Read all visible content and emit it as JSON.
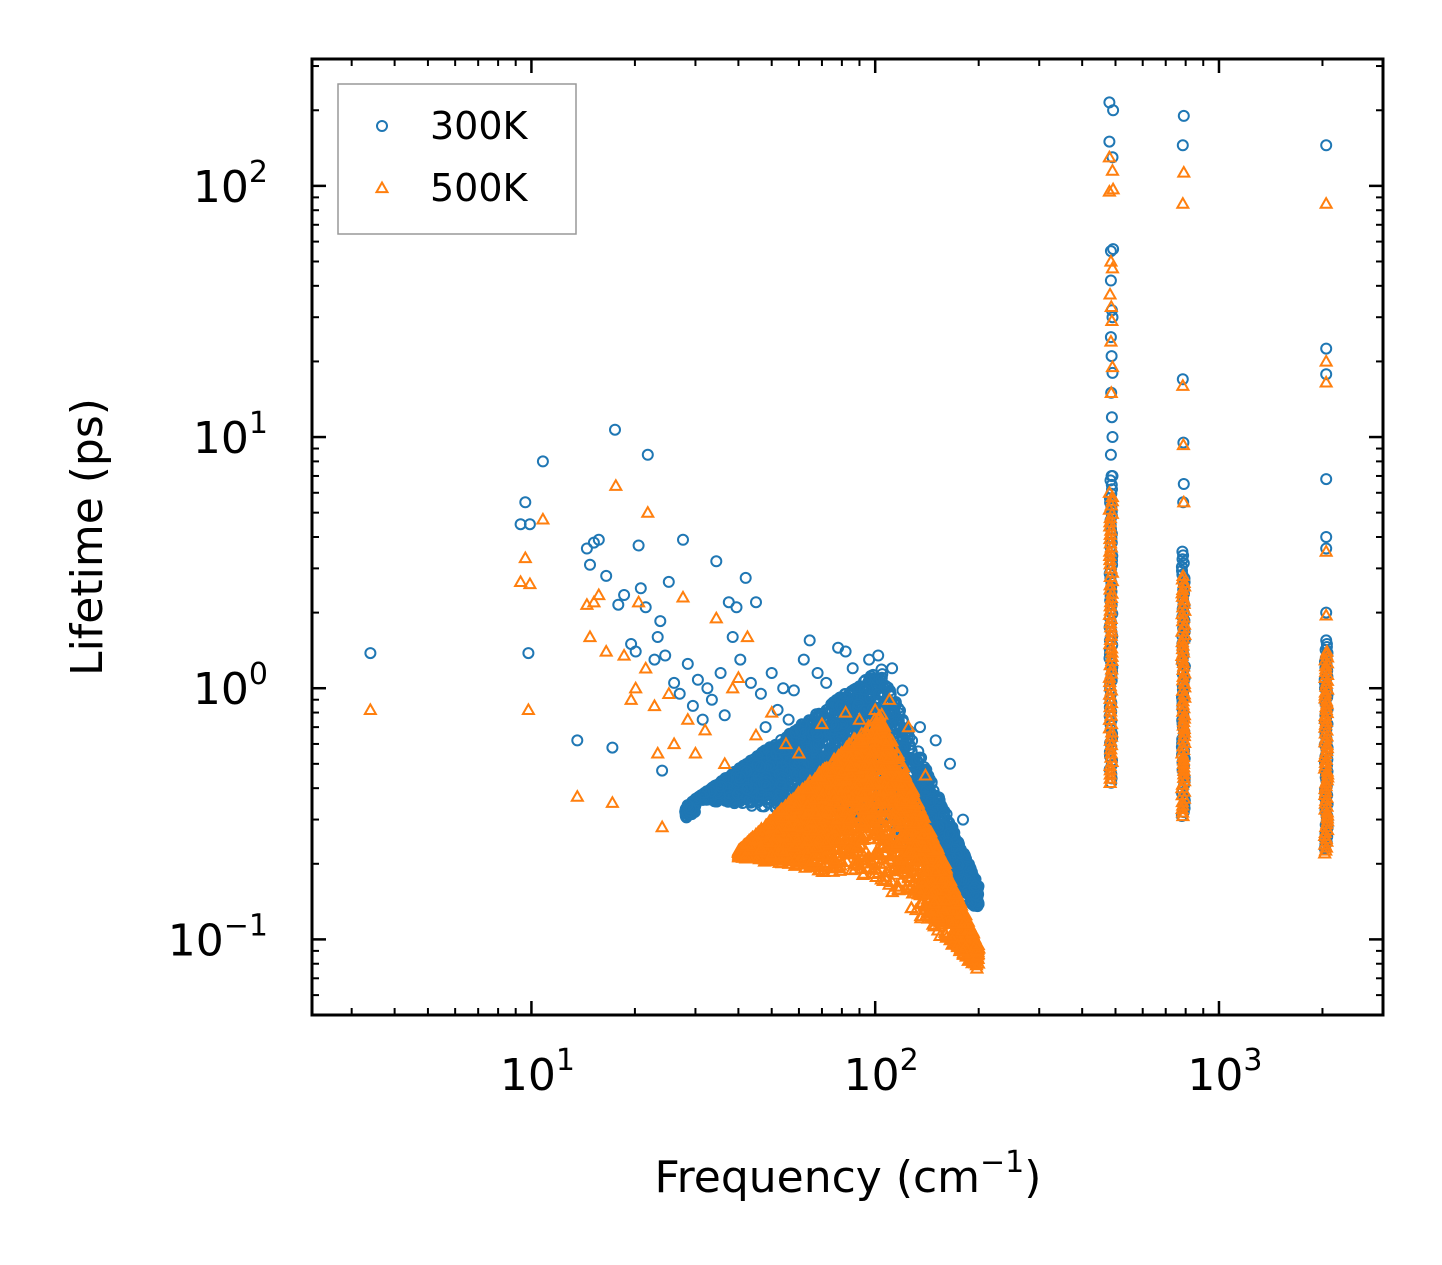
{
  "chart_data": {
    "type": "scatter",
    "xscale": "log",
    "yscale": "log",
    "xlabel_main": "Frequency (cm",
    "xlabel_sup": "−1",
    "xlabel_close": ")",
    "ylabel": "Lifetime (ps)",
    "xlim": [
      2.3,
      3000
    ],
    "ylim": [
      0.05,
      320
    ],
    "grid": false,
    "legend_position": "top-left",
    "x_ticks": [
      {
        "value": 10,
        "base": "10",
        "exp": "1"
      },
      {
        "value": 100,
        "base": "10",
        "exp": "2"
      },
      {
        "value": 1000,
        "base": "10",
        "exp": "3"
      }
    ],
    "y_ticks": [
      {
        "value": 0.1,
        "base": "10",
        "exp": "−1"
      },
      {
        "value": 1,
        "base": "10",
        "exp": "0"
      },
      {
        "value": 10,
        "base": "10",
        "exp": "1"
      },
      {
        "value": 100,
        "base": "10",
        "exp": "2"
      }
    ],
    "series": [
      {
        "name": "300K",
        "marker": "circle",
        "color": "#1f77b4",
        "points": [
          [
            3.4,
            1.38
          ],
          [
            9.3,
            4.5
          ],
          [
            9.6,
            5.5
          ],
          [
            9.9,
            4.5
          ],
          [
            9.8,
            1.38
          ],
          [
            10.8,
            8.0
          ],
          [
            13.6,
            0.62
          ],
          [
            14.5,
            3.6
          ],
          [
            14.8,
            3.1
          ],
          [
            15.2,
            3.8
          ],
          [
            15.7,
            3.9
          ],
          [
            16.5,
            2.8
          ],
          [
            17.2,
            0.58
          ],
          [
            17.9,
            2.15
          ],
          [
            17.5,
            10.7
          ],
          [
            18.6,
            2.35
          ],
          [
            19.5,
            1.5
          ],
          [
            20.1,
            1.4
          ],
          [
            20.5,
            3.7
          ],
          [
            20.8,
            2.5
          ],
          [
            21.5,
            2.1
          ],
          [
            21.8,
            8.5
          ],
          [
            22.8,
            1.3
          ],
          [
            23.3,
            1.6
          ],
          [
            23.7,
            1.85
          ],
          [
            24.5,
            1.35
          ],
          [
            25.1,
            2.65
          ],
          [
            24.0,
            0.47
          ],
          [
            26.0,
            1.05
          ],
          [
            27.0,
            0.95
          ],
          [
            27.6,
            3.9
          ],
          [
            28.5,
            1.25
          ],
          [
            29.5,
            0.85
          ],
          [
            30.5,
            1.08
          ],
          [
            31.5,
            0.75
          ],
          [
            32.5,
            1.0
          ],
          [
            33.5,
            0.9
          ],
          [
            34.5,
            3.2
          ],
          [
            35.5,
            1.15
          ],
          [
            36.5,
            0.78
          ],
          [
            37.5,
            2.2
          ],
          [
            38.5,
            1.6
          ],
          [
            39.5,
            2.1
          ],
          [
            40.5,
            1.3
          ],
          [
            42.0,
            2.75
          ],
          [
            43.5,
            1.05
          ],
          [
            45.0,
            2.2
          ],
          [
            46.5,
            0.95
          ],
          [
            48.0,
            0.7
          ],
          [
            50.0,
            1.15
          ],
          [
            52.0,
            0.82
          ],
          [
            54.0,
            1.0
          ],
          [
            56.0,
            0.75
          ],
          [
            58.0,
            0.98
          ],
          [
            62.0,
            1.3
          ],
          [
            64.5,
            1.55
          ],
          [
            68.0,
            1.15
          ],
          [
            72.0,
            1.05
          ],
          [
            78.0,
            1.45
          ],
          [
            82.0,
            1.4
          ],
          [
            86.0,
            1.2
          ],
          [
            96.0,
            1.3
          ],
          [
            102.0,
            1.35
          ],
          [
            112.0,
            1.2
          ],
          [
            120.0,
            0.98
          ],
          [
            135.0,
            0.7
          ],
          [
            150.0,
            0.62
          ],
          [
            165.0,
            0.5
          ],
          [
            180.0,
            0.3
          ],
          [
            190.0,
            0.14
          ],
          [
            194.0,
            0.16
          ],
          [
            196.0,
            0.15
          ],
          [
            480.0,
            215
          ],
          [
            492.0,
            200
          ],
          [
            480.0,
            150
          ],
          [
            490.0,
            130
          ],
          [
            485.0,
            55
          ],
          [
            492.0,
            56
          ],
          [
            485.0,
            42
          ],
          [
            488.0,
            32
          ],
          [
            490.0,
            30
          ],
          [
            485.0,
            25
          ],
          [
            487.0,
            21
          ],
          [
            490.0,
            18
          ],
          [
            486.0,
            15
          ],
          [
            488.0,
            12
          ],
          [
            490.0,
            10
          ],
          [
            485.0,
            8.5
          ],
          [
            490.0,
            7.0
          ],
          [
            790.0,
            190
          ],
          [
            785.0,
            145
          ],
          [
            785.0,
            17
          ],
          [
            788.0,
            9.5
          ],
          [
            790.0,
            6.5
          ],
          [
            787.0,
            5.5
          ],
          [
            2050.0,
            145
          ],
          [
            2050.0,
            22.5
          ],
          [
            2050.0,
            17.8
          ],
          [
            2050.0,
            6.8
          ],
          [
            2050.0,
            4.0
          ],
          [
            2050.0,
            3.6
          ],
          [
            2050.0,
            2.0
          ],
          [
            2050.0,
            1.55
          ]
        ],
        "bands": [
          {
            "x": 485,
            "ylow": 0.42,
            "yhigh": 7.0
          },
          {
            "x": 788,
            "ylow": 0.31,
            "yhigh": 3.5
          },
          {
            "x": 2050,
            "ylow": 0.23,
            "yhigh": 1.5
          }
        ],
        "cloud": {
          "xlow": 28,
          "xhigh": 200,
          "ylow": 0.13,
          "yhigh": 1.35,
          "peak_x": 104,
          "peak_y": 1.2
        }
      },
      {
        "name": "500K",
        "marker": "triangle",
        "color": "#ff7f0e",
        "points": [
          [
            3.4,
            0.82
          ],
          [
            9.3,
            2.65
          ],
          [
            9.6,
            3.3
          ],
          [
            9.9,
            2.6
          ],
          [
            9.8,
            0.82
          ],
          [
            10.8,
            4.7
          ],
          [
            13.6,
            0.37
          ],
          [
            14.5,
            2.15
          ],
          [
            14.8,
            1.6
          ],
          [
            15.2,
            2.2
          ],
          [
            15.7,
            2.35
          ],
          [
            16.5,
            1.4
          ],
          [
            17.2,
            0.35
          ],
          [
            17.6,
            6.4
          ],
          [
            18.6,
            1.35
          ],
          [
            19.5,
            0.9
          ],
          [
            20.1,
            1.0
          ],
          [
            20.5,
            2.2
          ],
          [
            21.8,
            5.0
          ],
          [
            21.5,
            1.2
          ],
          [
            22.8,
            0.85
          ],
          [
            23.3,
            0.55
          ],
          [
            24.0,
            0.28
          ],
          [
            25.1,
            0.95
          ],
          [
            26.0,
            0.6
          ],
          [
            27.6,
            2.3
          ],
          [
            28.5,
            0.75
          ],
          [
            30.0,
            0.55
          ],
          [
            32.0,
            0.68
          ],
          [
            34.5,
            1.9
          ],
          [
            36.5,
            0.5
          ],
          [
            38.5,
            1.0
          ],
          [
            40.0,
            1.1
          ],
          [
            42.5,
            1.6
          ],
          [
            45.0,
            0.65
          ],
          [
            50.0,
            0.8
          ],
          [
            55.0,
            0.6
          ],
          [
            60.0,
            0.55
          ],
          [
            70.0,
            0.72
          ],
          [
            82.0,
            0.8
          ],
          [
            90.0,
            0.75
          ],
          [
            100.0,
            0.82
          ],
          [
            110.0,
            0.9
          ],
          [
            125.0,
            0.7
          ],
          [
            140.0,
            0.45
          ],
          [
            160.0,
            0.2
          ],
          [
            180.0,
            0.09
          ],
          [
            196.0,
            0.095
          ],
          [
            480.0,
            130
          ],
          [
            490.0,
            115
          ],
          [
            480.0,
            95
          ],
          [
            492.0,
            97
          ],
          [
            485.0,
            50
          ],
          [
            490.0,
            47
          ],
          [
            482.0,
            37
          ],
          [
            486.0,
            33
          ],
          [
            488.0,
            29
          ],
          [
            485.0,
            24
          ],
          [
            490.0,
            19
          ],
          [
            486.0,
            15
          ],
          [
            790.0,
            113
          ],
          [
            785.0,
            85
          ],
          [
            785.0,
            16
          ],
          [
            788.0,
            9.3
          ],
          [
            790.0,
            5.5
          ],
          [
            2050.0,
            85
          ],
          [
            2050.0,
            20
          ],
          [
            2050.0,
            16.5
          ],
          [
            2050.0,
            3.5
          ],
          [
            2050.0,
            1.95
          ]
        ],
        "bands": [
          {
            "x": 485,
            "ylow": 0.42,
            "yhigh": 6.0
          },
          {
            "x": 788,
            "ylow": 0.31,
            "yhigh": 2.8
          },
          {
            "x": 2050,
            "ylow": 0.22,
            "yhigh": 1.4
          }
        ],
        "cloud": {
          "xlow": 40,
          "xhigh": 200,
          "ylow": 0.075,
          "yhigh": 0.85,
          "peak_x": 104,
          "peak_y": 0.8
        }
      }
    ]
  }
}
